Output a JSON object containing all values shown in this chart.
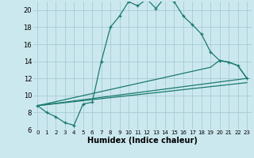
{
  "xlabel": "Humidex (Indice chaleur)",
  "background_color": "#cce8ef",
  "grid_color": "#aacfd8",
  "line_color": "#1a7a6e",
  "xlim": [
    -0.5,
    23.5
  ],
  "ylim": [
    6,
    21
  ],
  "yticks": [
    6,
    8,
    10,
    12,
    14,
    16,
    18,
    20
  ],
  "xticks": [
    0,
    1,
    2,
    3,
    4,
    5,
    6,
    7,
    8,
    9,
    10,
    11,
    12,
    13,
    14,
    15,
    16,
    17,
    18,
    19,
    20,
    21,
    22,
    23
  ],
  "series1_x": [
    0,
    1,
    2,
    3,
    4,
    5,
    6,
    7,
    8,
    9,
    10,
    11,
    12,
    13,
    14,
    15,
    16,
    17,
    18,
    19,
    20,
    21,
    22,
    23
  ],
  "series1_y": [
    8.8,
    8.0,
    7.5,
    6.8,
    6.5,
    9.0,
    9.2,
    14.0,
    18.0,
    19.3,
    21.0,
    20.5,
    21.3,
    20.2,
    21.5,
    21.0,
    19.3,
    18.3,
    17.2,
    15.1,
    14.1,
    13.9,
    13.5,
    12.0
  ],
  "series2_x": [
    0,
    19,
    20,
    21,
    22,
    23
  ],
  "series2_y": [
    8.8,
    13.3,
    14.1,
    13.9,
    13.5,
    12.0
  ],
  "series3_x": [
    0,
    23
  ],
  "series3_y": [
    8.8,
    12.0
  ],
  "series4_x": [
    0,
    23
  ],
  "series4_y": [
    8.8,
    11.5
  ]
}
